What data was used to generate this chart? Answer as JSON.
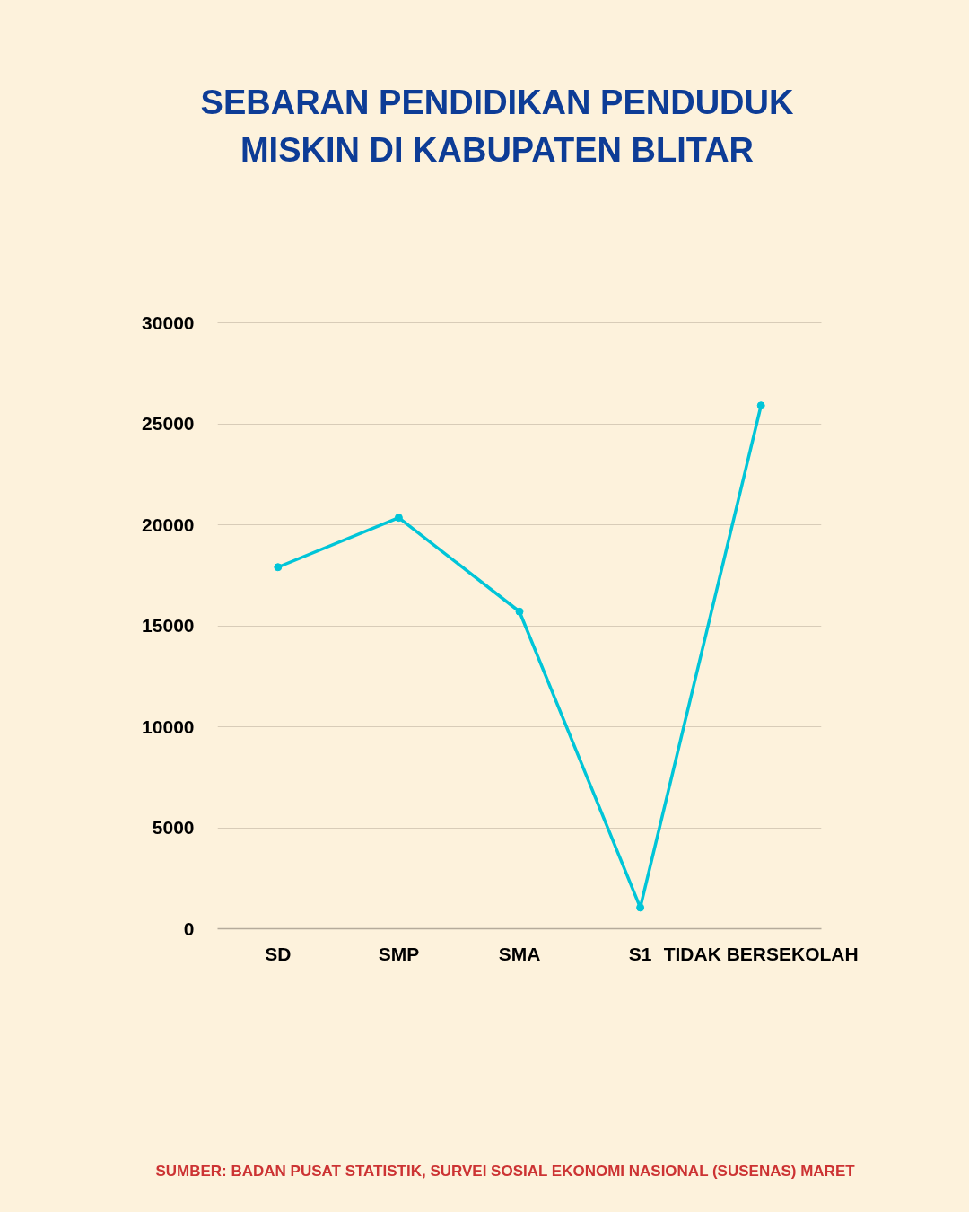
{
  "chart_data": {
    "type": "line",
    "title": "SEBARAN PENDIDIKAN PENDUDUK\nMISKIN DI KABUPATEN BLITAR",
    "categories": [
      "SD",
      "SMP",
      "SMA",
      "S1",
      "TIDAK BERSEKOLAH"
    ],
    "series": [
      {
        "color": "#00c5d8",
        "values": [
          17900,
          20350,
          15700,
          1050,
          25900
        ]
      }
    ],
    "ylim": [
      0,
      30000
    ],
    "yticks": [
      0,
      5000,
      10000,
      15000,
      20000,
      25000,
      30000
    ],
    "grid": "y",
    "marker": "circle",
    "line_style": "solid",
    "annotations": [
      "SUMBER: BADAN PUSAT STATISTIK, SURVEI SOSIAL EKONOMI NASIONAL (SUSENAS) MARET"
    ]
  }
}
